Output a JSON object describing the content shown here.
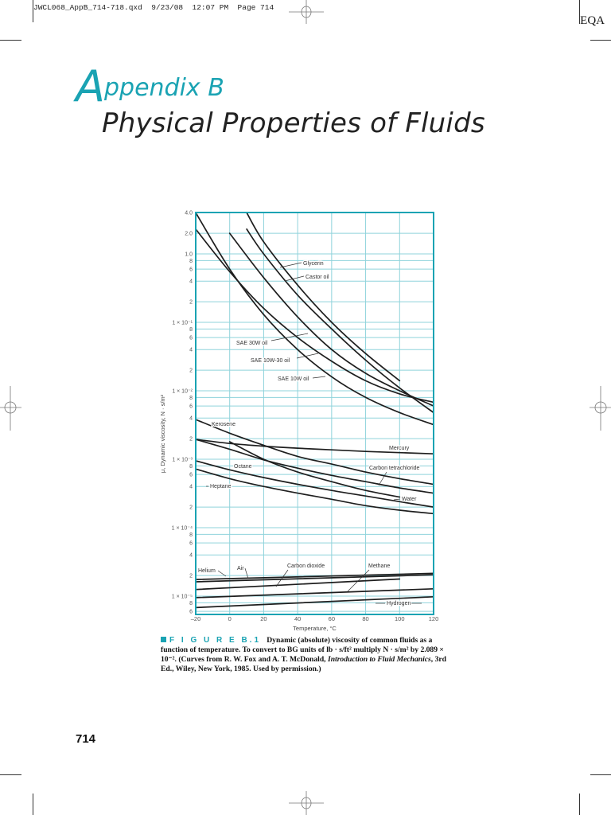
{
  "header": {
    "slug": "JWCL068_AppB_714-718.qxd  9/23/08  12:07 PM  Page 714",
    "corner_tag": "EQA"
  },
  "title": {
    "initial": "A",
    "line1_rest": "ppendix B",
    "line2": "Physical Properties of Fluids"
  },
  "figure": {
    "label": "F I G U R E  B.1",
    "caption_part1": "Dynamic (absolute) viscosity of common fluids as a function of temperature. To convert to BG units of lb · s/ft² multiply N · s/m² by 2.089 × 10⁻². (Curves from R. W. Fox and A. T. McDonald, ",
    "caption_italic": "Introduction to Fluid Mechanics",
    "caption_part2": ", 3rd Ed., Wiley, New York, 1985. Used by permission.)"
  },
  "page_number": "714",
  "colors": {
    "accent": "#1aa3b3",
    "grid": "#8fd3db",
    "frame": "#1aa3b3",
    "curve": "#1e1e1e"
  },
  "chart_data": {
    "type": "line",
    "title": "",
    "xlabel": "Temperature, °C",
    "ylabel": "μ, Dynamic viscosity, N · s/m²",
    "xlim": [
      -20,
      120
    ],
    "ylim": [
      4.4e-06,
      4.0
    ],
    "yscale": "log",
    "grid": true,
    "x_ticks": [
      -20,
      0,
      20,
      40,
      60,
      80,
      100,
      120
    ],
    "y_ticks": [
      {
        "value": 4.0,
        "label": "4.0"
      },
      {
        "value": 2.0,
        "label": "2.0"
      },
      {
        "value": 1.0,
        "label": "1.0"
      },
      {
        "value": 0.8,
        "label": "8"
      },
      {
        "value": 0.6,
        "label": "6"
      },
      {
        "value": 0.4,
        "label": "4"
      },
      {
        "value": 0.2,
        "label": "2"
      },
      {
        "value": 0.1,
        "label": "1 × 10⁻¹"
      },
      {
        "value": 0.08,
        "label": "8"
      },
      {
        "value": 0.06,
        "label": "6"
      },
      {
        "value": 0.04,
        "label": "4"
      },
      {
        "value": 0.02,
        "label": "2"
      },
      {
        "value": 0.01,
        "label": "1 × 10⁻²"
      },
      {
        "value": 0.008,
        "label": "8"
      },
      {
        "value": 0.006,
        "label": "6"
      },
      {
        "value": 0.004,
        "label": "4"
      },
      {
        "value": 0.002,
        "label": "2"
      },
      {
        "value": 0.001,
        "label": "1 × 10⁻³"
      },
      {
        "value": 0.0008,
        "label": "8"
      },
      {
        "value": 0.0006,
        "label": "6"
      },
      {
        "value": 0.0004,
        "label": "4"
      },
      {
        "value": 0.0002,
        "label": "2"
      },
      {
        "value": 0.0001,
        "label": "1 × 10⁻⁴"
      },
      {
        "value": 8e-05,
        "label": "8"
      },
      {
        "value": 6e-05,
        "label": "6"
      },
      {
        "value": 4e-05,
        "label": "4"
      },
      {
        "value": 2e-05,
        "label": "2"
      },
      {
        "value": 1e-05,
        "label": "1 × 10⁻⁵"
      },
      {
        "value": 8e-06,
        "label": "8"
      },
      {
        "value": 6e-06,
        "label": "6"
      }
    ],
    "series": [
      {
        "name": "Glycerin",
        "x": [
          10,
          20,
          40,
          60,
          80,
          100
        ],
        "values": [
          4.0,
          1.5,
          0.35,
          0.1,
          0.035,
          0.014
        ]
      },
      {
        "name": "Castor oil",
        "x": [
          10,
          20,
          40,
          60,
          80,
          100,
          120
        ],
        "values": [
          2.3,
          1.0,
          0.25,
          0.08,
          0.028,
          0.011,
          0.0048
        ]
      },
      {
        "name": "SAE 30W oil",
        "x": [
          0,
          20,
          40,
          60,
          80,
          100,
          120
        ],
        "values": [
          2.0,
          0.45,
          0.12,
          0.04,
          0.018,
          0.01,
          0.006
        ]
      },
      {
        "name": "SAE 10W-30 oil",
        "x": [
          -20,
          0,
          20,
          40,
          60,
          80,
          100,
          120
        ],
        "values": [
          2.3,
          0.55,
          0.16,
          0.06,
          0.027,
          0.014,
          0.009,
          0.0068
        ]
      },
      {
        "name": "SAE 10W oil",
        "x": [
          -20,
          0,
          20,
          40,
          60,
          80,
          100,
          120
        ],
        "values": [
          4.0,
          0.6,
          0.13,
          0.04,
          0.016,
          0.008,
          0.0048,
          0.0032
        ]
      },
      {
        "name": "Kerosene",
        "x": [
          -20,
          0,
          20,
          40,
          60,
          80,
          100,
          120
        ],
        "values": [
          0.0038,
          0.0024,
          0.0016,
          0.0011,
          0.00085,
          0.00065,
          0.00052,
          0.00043
        ]
      },
      {
        "name": "Mercury",
        "x": [
          -20,
          0,
          20,
          40,
          60,
          80,
          100,
          120
        ],
        "values": [
          0.00195,
          0.0017,
          0.00155,
          0.00145,
          0.00137,
          0.0013,
          0.00125,
          0.0012
        ]
      },
      {
        "name": "Carbon tetrachloride",
        "x": [
          -20,
          0,
          20,
          40,
          60,
          80,
          100,
          120
        ],
        "values": [
          0.00195,
          0.0014,
          0.00098,
          0.00074,
          0.00058,
          0.00047,
          0.00038,
          0.00032
        ]
      },
      {
        "name": "Water",
        "x": [
          0,
          20,
          40,
          60,
          80,
          100
        ],
        "values": [
          0.0018,
          0.001,
          0.00065,
          0.00047,
          0.00035,
          0.00028
        ]
      },
      {
        "name": "Octane",
        "x": [
          -20,
          0,
          20,
          40,
          60,
          80,
          100,
          120
        ],
        "values": [
          0.00095,
          0.0007,
          0.00054,
          0.00043,
          0.00035,
          0.00029,
          0.00024,
          0.0002
        ]
      },
      {
        "name": "Heptane",
        "x": [
          -20,
          0,
          20,
          40,
          60,
          80,
          100,
          120
        ],
        "values": [
          0.00072,
          0.00052,
          0.0004,
          0.00032,
          0.00026,
          0.00021,
          0.00018,
          0.00016
        ]
      },
      {
        "name": "Helium",
        "x": [
          -20,
          120
        ],
        "values": [
          1.75e-05,
          2.15e-05
        ]
      },
      {
        "name": "Air",
        "x": [
          -20,
          120
        ],
        "values": [
          1.62e-05,
          2.05e-05
        ]
      },
      {
        "name": "Carbon dioxide",
        "x": [
          -20,
          100
        ],
        "values": [
          1.25e-05,
          1.78e-05
        ]
      },
      {
        "name": "Methane",
        "x": [
          -20,
          120
        ],
        "values": [
          9.5e-06,
          1.28e-05
        ]
      },
      {
        "name": "Hydrogen",
        "x": [
          -20,
          120
        ],
        "values": [
          6.8e-06,
          9.8e-06
        ]
      }
    ],
    "annotations": [
      "Glycerin",
      "Castor oil",
      "SAE 30W oil",
      "SAE 10W-30 oil",
      "SAE 10W oil",
      "Kerosene",
      "Mercury",
      "Carbon tetrachloride",
      "Octane",
      "Heptane",
      "Water",
      "Helium",
      "Air",
      "Carbon dioxide",
      "Methane",
      "Hydrogen"
    ]
  }
}
